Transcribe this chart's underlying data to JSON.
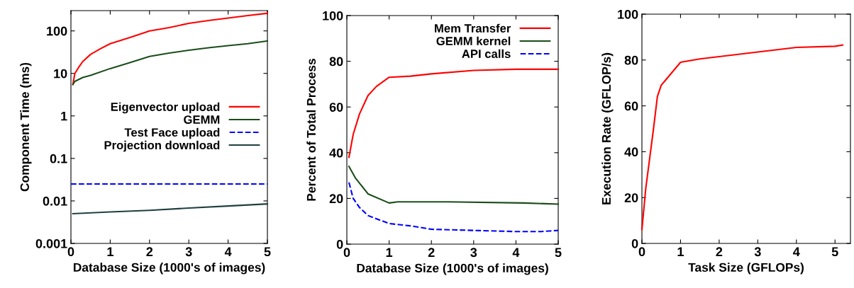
{
  "chart_data": [
    {
      "type": "line",
      "xlabel": "Database Size (1000's of images)",
      "ylabel": "Component Time (ms)",
      "log": "y",
      "xlim": [
        0,
        5
      ],
      "ylim": [
        0.001,
        300
      ],
      "xticks": [
        0,
        1,
        2,
        3,
        4,
        5
      ],
      "yticks": [
        0.001,
        0.01,
        0.1,
        1,
        10,
        100
      ],
      "legend": "center right",
      "grid": false,
      "series": [
        {
          "name": "Eigenvector upload",
          "color": "#ff0000",
          "line_style": "solid",
          "x": [
            0.05,
            0.1,
            0.2,
            0.3,
            0.5,
            0.75,
            1,
            1.5,
            2,
            2.5,
            3,
            3.5,
            4,
            4.5,
            5
          ],
          "values": [
            5.5,
            10,
            14,
            19,
            28,
            38,
            50,
            70,
            100,
            120,
            150,
            175,
            200,
            230,
            260
          ]
        },
        {
          "name": "GEMM",
          "color": "#1a4d1a",
          "line_style": "solid",
          "x": [
            0.05,
            0.1,
            0.3,
            0.5,
            1,
            1.5,
            2,
            2.5,
            3,
            3.5,
            4,
            4.5,
            5
          ],
          "values": [
            5.5,
            6.5,
            8,
            9,
            13,
            18,
            25,
            30,
            35,
            40,
            45,
            50,
            58
          ]
        },
        {
          "name": "Test Face upload",
          "color": "#0000ff",
          "line_style": "dashed",
          "x": [
            0,
            5
          ],
          "values": [
            0.025,
            0.025
          ]
        },
        {
          "name": "Projection download",
          "color": "#1f3f3f",
          "line_style": "solid",
          "x": [
            0.05,
            1,
            2,
            3,
            4,
            5
          ],
          "values": [
            0.005,
            0.0055,
            0.006,
            0.0068,
            0.0076,
            0.0085
          ]
        }
      ]
    },
    {
      "type": "line",
      "xlabel": "Database Size (1000's of images)",
      "ylabel": "Percent of Total Process",
      "xlim": [
        0,
        5
      ],
      "ylim": [
        0,
        100
      ],
      "xticks": [
        0,
        1,
        2,
        3,
        4,
        5
      ],
      "yticks": [
        0,
        20,
        40,
        60,
        80,
        100
      ],
      "legend": "top right",
      "grid": false,
      "series": [
        {
          "name": "Mem Transfer",
          "color": "#ff0000",
          "line_style": "solid",
          "x": [
            0.05,
            0.15,
            0.3,
            0.5,
            0.7,
            1,
            1.5,
            2,
            3,
            4,
            5
          ],
          "values": [
            38,
            48,
            57,
            65,
            69,
            73,
            73.5,
            74.5,
            76,
            76.5,
            76.5
          ]
        },
        {
          "name": "GEMM kernel",
          "color": "#1a4d1a",
          "line_style": "solid",
          "x": [
            0.05,
            0.2,
            0.5,
            1,
            1.2,
            2.4,
            4.2,
            5
          ],
          "values": [
            34,
            29,
            22,
            18,
            18.5,
            18.5,
            18,
            17.5
          ]
        },
        {
          "name": "API calls",
          "color": "#0000ff",
          "line_style": "dashed",
          "x": [
            0.05,
            0.15,
            0.3,
            0.5,
            1,
            1.5,
            2,
            3,
            4,
            4.6,
            5
          ],
          "values": [
            27,
            20,
            16,
            12.5,
            9,
            8,
            6.5,
            6,
            5.5,
            5.5,
            6
          ]
        }
      ]
    },
    {
      "type": "line",
      "xlabel": "Task Size (GFLOPs)",
      "ylabel": "Execution Rate (GFLOP/s)",
      "xlim": [
        0,
        5.4
      ],
      "ylim": [
        0,
        100
      ],
      "xticks": [
        0,
        1,
        2,
        3,
        4,
        5
      ],
      "yticks": [
        0,
        20,
        40,
        60,
        80,
        100
      ],
      "legend": false,
      "grid": false,
      "series": [
        {
          "color": "#ff0000",
          "line_style": "solid",
          "x": [
            0,
            0.05,
            0.1,
            0.2,
            0.3,
            0.4,
            0.5,
            0.6,
            0.8,
            1,
            1.5,
            2,
            3,
            4,
            5,
            5.2
          ],
          "values": [
            6,
            15,
            24,
            37,
            50,
            64,
            69,
            71,
            75,
            79,
            80.5,
            81.5,
            83.5,
            85.5,
            86,
            86.5
          ]
        }
      ]
    }
  ]
}
